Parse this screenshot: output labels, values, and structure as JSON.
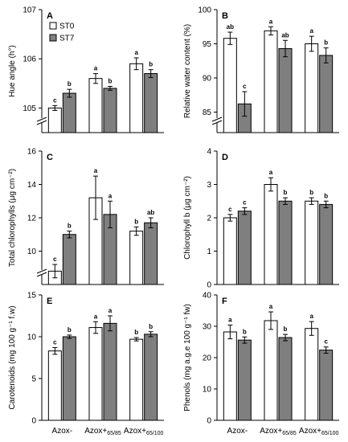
{
  "legend": {
    "st0": "ST0",
    "st7": "ST7"
  },
  "colors": {
    "st0": "#ffffff",
    "st7": "#7f7f7f",
    "stroke": "#000000"
  },
  "categories": [
    {
      "main": "Azox-",
      "sub": ""
    },
    {
      "main": "Azox+",
      "sub": "65/85"
    },
    {
      "main": "Azox+",
      "sub": "65/100"
    }
  ],
  "chart_data": [
    {
      "type": "bar",
      "panel": "A",
      "ylabel": "Hue angle (h°)",
      "ylim": [
        104.5,
        107
      ],
      "yticks": [
        105,
        106,
        107
      ],
      "axis_break": true,
      "show_x_labels": false,
      "series": [
        {
          "name": "ST0",
          "values": [
            105.0,
            105.6,
            105.9
          ],
          "errors": [
            0.05,
            0.1,
            0.12
          ],
          "letters": [
            "c",
            "a",
            "a"
          ]
        },
        {
          "name": "ST7",
          "values": [
            105.3,
            105.4,
            105.7
          ],
          "errors": [
            0.08,
            0.04,
            0.08
          ],
          "letters": [
            "b",
            "b",
            "b"
          ]
        }
      ]
    },
    {
      "type": "bar",
      "panel": "B",
      "ylabel": "Relative water content (%)",
      "ylim": [
        82,
        100
      ],
      "yticks": [
        85,
        90,
        95,
        100
      ],
      "axis_break": true,
      "show_x_labels": false,
      "series": [
        {
          "name": "ST0",
          "values": [
            95.8,
            96.9,
            95.0
          ],
          "errors": [
            0.9,
            0.6,
            1.1
          ],
          "letters": [
            "ab",
            "a",
            "a"
          ]
        },
        {
          "name": "ST7",
          "values": [
            86.2,
            94.3,
            93.3
          ],
          "errors": [
            1.8,
            1.2,
            1.1
          ],
          "letters": [
            "c",
            "ab",
            "b"
          ]
        }
      ]
    },
    {
      "type": "bar",
      "panel": "C",
      "ylabel": "Total chlorophylls (μg cm⁻²)",
      "ylim": [
        8,
        16
      ],
      "yticks": [
        10,
        12,
        14,
        16
      ],
      "axis_break": true,
      "show_x_labels": false,
      "series": [
        {
          "name": "ST0",
          "values": [
            8.8,
            13.2,
            11.2
          ],
          "errors": [
            0.4,
            1.3,
            0.25
          ],
          "letters": [
            "c",
            "a",
            "b"
          ]
        },
        {
          "name": "ST7",
          "values": [
            11.0,
            12.2,
            11.7
          ],
          "errors": [
            0.2,
            0.8,
            0.3
          ],
          "letters": [
            "b",
            "a",
            "ab"
          ]
        }
      ]
    },
    {
      "type": "bar",
      "panel": "D",
      "ylabel": "Chlorophyll b (μg cm⁻²)",
      "ylim": [
        0,
        4
      ],
      "yticks": [
        0,
        1,
        2,
        3,
        4
      ],
      "axis_break": false,
      "show_x_labels": false,
      "series": [
        {
          "name": "ST0",
          "values": [
            2.0,
            3.0,
            2.5
          ],
          "errors": [
            0.1,
            0.2,
            0.1
          ],
          "letters": [
            "c",
            "a",
            "b"
          ]
        },
        {
          "name": "ST7",
          "values": [
            2.2,
            2.5,
            2.4
          ],
          "errors": [
            0.1,
            0.1,
            0.1
          ],
          "letters": [
            "c",
            "b",
            "b"
          ]
        }
      ]
    },
    {
      "type": "bar",
      "panel": "E",
      "ylabel": "Carotenoids (mg 100 g⁻¹ f.w)",
      "ylim": [
        0,
        15
      ],
      "yticks": [
        0,
        5,
        10,
        15
      ],
      "axis_break": false,
      "show_x_labels": true,
      "series": [
        {
          "name": "ST0",
          "values": [
            8.3,
            11.1,
            9.7
          ],
          "errors": [
            0.4,
            0.7,
            0.2
          ],
          "letters": [
            "c",
            "a",
            "b"
          ]
        },
        {
          "name": "ST7",
          "values": [
            10.0,
            11.6,
            10.3
          ],
          "errors": [
            0.2,
            0.9,
            0.3
          ],
          "letters": [
            "b",
            "a",
            "b"
          ]
        }
      ]
    },
    {
      "type": "bar",
      "panel": "F",
      "ylabel": "Phenols (mg a.g.e 100 g⁻¹ fw)",
      "ylim": [
        0,
        40
      ],
      "yticks": [
        0,
        10,
        20,
        30,
        40
      ],
      "axis_break": false,
      "show_x_labels": true,
      "series": [
        {
          "name": "ST0",
          "values": [
            28.2,
            31.8,
            29.3
          ],
          "errors": [
            2.2,
            2.8,
            2.2
          ],
          "letters": [
            "a",
            "a",
            "a"
          ]
        },
        {
          "name": "ST7",
          "values": [
            25.6,
            26.4,
            22.4
          ],
          "errors": [
            1.0,
            1.0,
            1.0
          ],
          "letters": [
            "b",
            "b",
            "c"
          ]
        }
      ]
    }
  ]
}
